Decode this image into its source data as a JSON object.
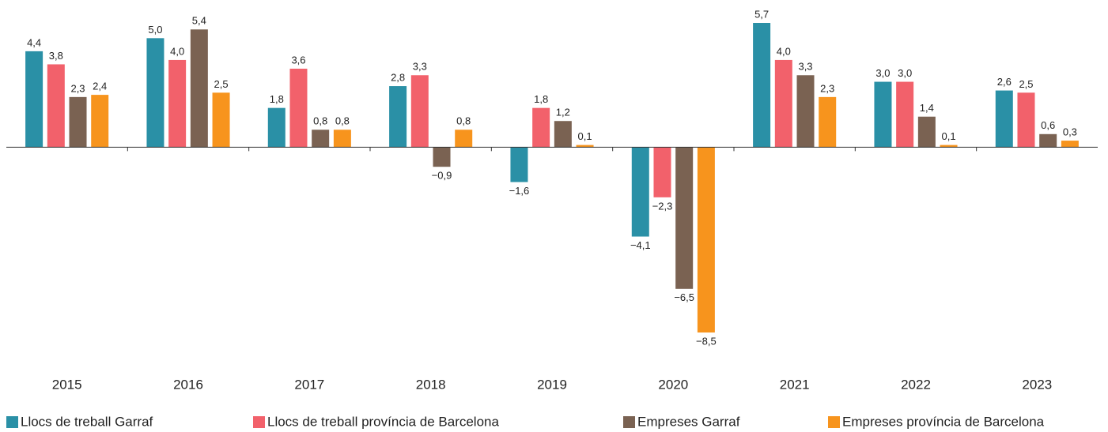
{
  "chart_data": {
    "type": "bar",
    "categories": [
      "2015",
      "2016",
      "2017",
      "2018",
      "2019",
      "2020",
      "2021",
      "2022",
      "2023"
    ],
    "series": [
      {
        "name": "Llocs de treball Garraf",
        "color": "#2a90a6",
        "values": [
          4.4,
          5.0,
          1.8,
          2.8,
          -1.6,
          -4.1,
          5.7,
          3.0,
          2.6
        ],
        "value_labels": [
          "4,4",
          "5,0",
          "1,8",
          "2,8",
          "−1,6",
          "−4,1",
          "5,7",
          "3,0",
          "2,6"
        ]
      },
      {
        "name": "Llocs de treball província de Barcelona",
        "color": "#f2616b",
        "values": [
          3.8,
          4.0,
          3.6,
          3.3,
          1.8,
          -2.3,
          4.0,
          3.0,
          2.5
        ],
        "value_labels": [
          "3,8",
          "4,0",
          "3,6",
          "3,3",
          "1,8",
          "−2,3",
          "4,0",
          "3,0",
          "2,5"
        ]
      },
      {
        "name": "Empreses Garraf",
        "color": "#7a6252",
        "values": [
          2.3,
          5.4,
          0.8,
          -0.9,
          1.2,
          -6.5,
          3.3,
          1.4,
          0.6
        ],
        "value_labels": [
          "2,3",
          "5,4",
          "0,8",
          "−0,9",
          "1,2",
          "−6,5",
          "3,3",
          "1,4",
          "0,6"
        ]
      },
      {
        "name": "Empreses província de Barcelona",
        "color": "#f7941d",
        "values": [
          2.4,
          2.5,
          0.8,
          0.8,
          0.1,
          -8.5,
          2.3,
          0.1,
          0.3
        ],
        "value_labels": [
          "2,4",
          "2,5",
          "0,8",
          "0,8",
          "0,1",
          "−8,5",
          "2,3",
          "0,1",
          "0,3"
        ]
      }
    ]
  }
}
